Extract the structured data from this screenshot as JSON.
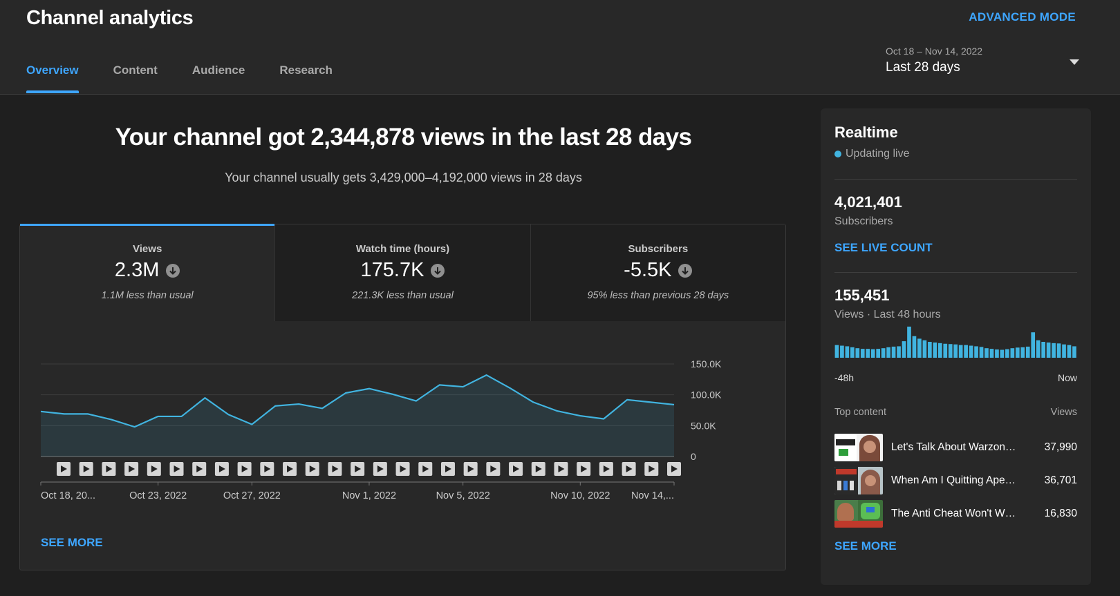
{
  "header": {
    "title": "Channel analytics",
    "advanced_mode": "ADVANCED MODE",
    "tabs": [
      {
        "label": "Overview",
        "active": true
      },
      {
        "label": "Content",
        "active": false
      },
      {
        "label": "Audience",
        "active": false
      },
      {
        "label": "Research",
        "active": false
      }
    ],
    "date_range": {
      "dates": "Oct 18 – Nov 14, 2022",
      "label": "Last 28 days"
    }
  },
  "main": {
    "headline": "Your channel got 2,344,878 views in the last 28 days",
    "subline": "Your channel usually gets 3,429,000–4,192,000 views in 28 days",
    "metrics": [
      {
        "label": "Views",
        "value": "2.3M",
        "note": "1.1M less than usual"
      },
      {
        "label": "Watch time (hours)",
        "value": "175.7K",
        "note": "221.3K less than usual"
      },
      {
        "label": "Subscribers",
        "value": "-5.5K",
        "note": "95% less than previous 28 days"
      }
    ],
    "see_more": "SEE MORE"
  },
  "chart_data": {
    "type": "area",
    "y_ticks": [
      "150.0K",
      "100.0K",
      "50.0K",
      "0"
    ],
    "ylim": [
      0,
      150000
    ],
    "x_tick_labels": [
      "Oct 18, 20...",
      "Oct 23, 2022",
      "Oct 27, 2022",
      "Nov 1, 2022",
      "Nov 5, 2022",
      "Nov 10, 2022",
      "Nov 14,..."
    ],
    "x_tick_index": [
      0,
      5,
      9,
      14,
      18,
      23,
      27
    ],
    "series": [
      {
        "values": [
          73000,
          69000,
          69000,
          60000,
          48000,
          65000,
          65000,
          95000,
          68000,
          52000,
          82000,
          85000,
          78000,
          103000,
          110000,
          101000,
          90000,
          116000,
          113000,
          132000,
          111000,
          88000,
          74000,
          66000,
          61000,
          92000,
          88000,
          84000
        ]
      }
    ],
    "color": "#41b4e0"
  },
  "realtime": {
    "title": "Realtime",
    "status": "Updating live",
    "subscribers": "4,021,401",
    "subscribers_label": "Subscribers",
    "live_count": "SEE LIVE COUNT",
    "views": "155,451",
    "views_label": "Views · Last 48 hours",
    "axis_start": "-48h",
    "axis_end": "Now",
    "mini_chart": [
      40,
      38,
      36,
      33,
      30,
      28,
      28,
      27,
      28,
      30,
      33,
      35,
      36,
      52,
      98,
      68,
      60,
      55,
      50,
      48,
      46,
      44,
      43,
      42,
      40,
      40,
      38,
      36,
      34,
      30,
      28,
      26,
      25,
      27,
      30,
      32,
      33,
      35,
      80,
      55,
      50,
      48,
      46,
      45,
      42,
      40,
      36
    ],
    "top_content_label": "Top content",
    "top_views_label": "Views",
    "top_content": [
      {
        "title": "Let's Talk About Warzon…",
        "views": "37,990"
      },
      {
        "title": "When Am I Quitting Ape…",
        "views": "36,701"
      },
      {
        "title": "The Anti Cheat Won't W…",
        "views": "16,830"
      }
    ],
    "see_more": "SEE MORE"
  }
}
